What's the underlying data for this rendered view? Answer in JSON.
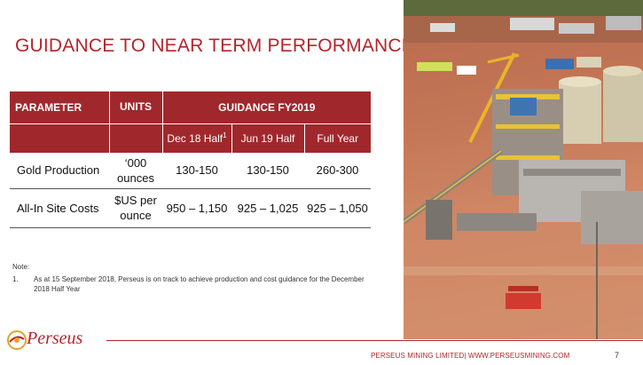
{
  "title": "GUIDANCE TO NEAR TERM PERFORMANCE",
  "table": {
    "headers": {
      "parameter": "PARAMETER",
      "units": "UNITS",
      "guidance": "GUIDANCE FY2019",
      "dec_half": "Dec 18 Half",
      "dec_half_sup": "1",
      "jun_half": "Jun 19 Half",
      "full_year": "Full Year"
    },
    "rows": [
      {
        "parameter": "Gold Production",
        "units_line1": "‘000",
        "units_line2": "ounces",
        "dec": "130-150",
        "jun": "130-150",
        "full": "260-300"
      },
      {
        "parameter": "All-In Site Costs",
        "units_line1": "$US per",
        "units_line2": "ounce",
        "dec": "950 – 1,150",
        "jun": "925 – 1,025",
        "full": "925 – 1,050"
      }
    ]
  },
  "notes": {
    "heading": "Note:",
    "items": [
      {
        "num": "1.",
        "text": "As at 15 September 2018, Perseus is on track to achieve production and cost guidance for the December 2018 Half Year"
      }
    ]
  },
  "footer": {
    "logo_text": "Perseus",
    "company_text": "PERSEUS MINING LIMITED| WWW.PERSEUSMINING.COM",
    "page_number": "7"
  },
  "colors": {
    "accent": "#b5252c",
    "header_fill": "#a0282c"
  },
  "photo": {
    "icon": "mine-processing-plant-photo"
  }
}
